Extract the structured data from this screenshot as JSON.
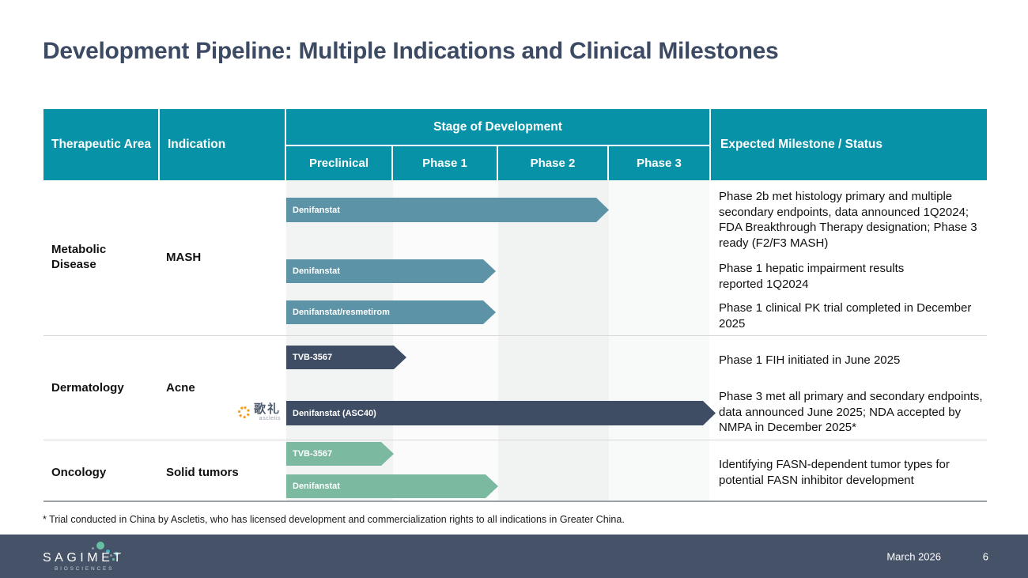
{
  "slide": {
    "title": "Development Pipeline: Multiple Indications and Clinical Milestones",
    "footnote": "* Trial conducted in China by Ascletis, who has licensed development and commercialization rights to all indications in Greater China.",
    "footer": {
      "brand": "SAGIMET",
      "brand_sub": "BIOSCIENCES",
      "date": "March 2026",
      "page": "6"
    }
  },
  "table": {
    "headers": {
      "therapeutic_area": "Therapeutic Area",
      "indication": "Indication",
      "stage_group": "Stage of Development",
      "stages": [
        "Preclinical",
        "Phase 1",
        "Phase 2",
        "Phase 3"
      ],
      "milestone": "Expected Milestone / Status"
    },
    "sections": [
      {
        "area": "Metabolic Disease",
        "indication": "MASH"
      },
      {
        "area": "Dermatology",
        "indication": "Acne"
      },
      {
        "area": "Oncology",
        "indication": "Solid tumors"
      }
    ],
    "bars": [
      {
        "label": "Denifanstat",
        "section": "Metabolic Disease",
        "reach": "Phase 2",
        "color": "#5d93a6"
      },
      {
        "label": "Denifanstat",
        "section": "Metabolic Disease",
        "reach": "Phase 1",
        "color": "#5d93a6"
      },
      {
        "label": "Denifanstat/resmetirom",
        "section": "Metabolic Disease",
        "reach": "Phase 1",
        "color": "#5d93a6"
      },
      {
        "label": "TVB-3567",
        "section": "Dermatology",
        "reach": "Phase 1",
        "color": "#3e4d63"
      },
      {
        "label": "Denifanstat (ASC40)",
        "section": "Dermatology",
        "reach": "Phase 3",
        "color": "#3e4d63"
      },
      {
        "label": "TVB-3567",
        "section": "Oncology",
        "reach": "Preclinical",
        "color": "#7cb9a1"
      },
      {
        "label": "Denifanstat",
        "section": "Oncology",
        "reach": "Phase 1",
        "color": "#7cb9a1"
      }
    ],
    "milestones": [
      {
        "text": "Phase 2b met histology primary and multiple\nsecondary endpoints, data announced 1Q2024;\nFDA Breakthrough Therapy designation; Phase 3\nready (F2/F3 MASH)"
      },
      {
        "text": "Phase 1 hepatic impairment results\nreported 1Q2024"
      },
      {
        "text": "Phase 1 clinical PK trial completed in December\n2025"
      },
      {
        "text": "Phase 1 FIH initiated in June 2025"
      },
      {
        "text": "Phase 3 met all primary and secondary endpoints,\ndata announced June 2025; NDA accepted by\nNMPA in December 2025*"
      },
      {
        "text": "Identifying FASN-dependent tumor types for\npotential FASN inhibitor development"
      }
    ]
  },
  "logos": {
    "ascletis": {
      "chars": "歌礼",
      "name": "ascletis"
    }
  },
  "colors": {
    "header_teal": "#0892a8",
    "bar_steel": "#5d93a6",
    "bar_dark": "#3e4d63",
    "bar_green": "#7cb9a1",
    "footer_bg": "#465268",
    "title_text": "#3c4a63"
  }
}
